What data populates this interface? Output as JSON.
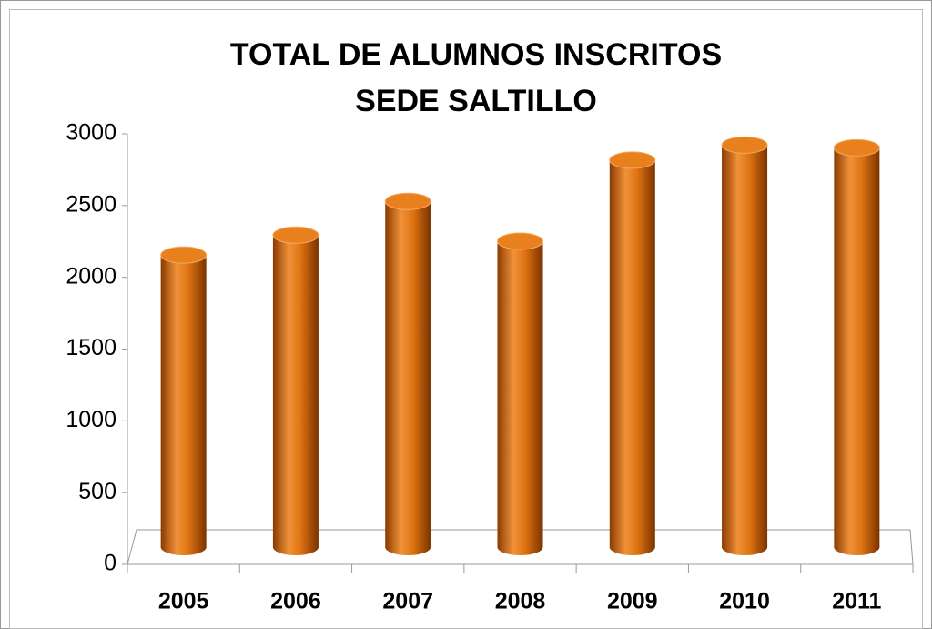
{
  "chart_data": {
    "type": "bar",
    "title": [
      "TOTAL DE ALUMNOS INSCRITOS",
      "SEDE SALTILLO"
    ],
    "categories": [
      "2005",
      "2006",
      "2007",
      "2008",
      "2009",
      "2010",
      "2011"
    ],
    "values": [
      2125,
      2270,
      2515,
      2225,
      2815,
      2925,
      2905
    ],
    "color": "#d96c00",
    "ylim": [
      0,
      3000
    ],
    "yticks": [
      0,
      500,
      1000,
      1500,
      2000,
      2500,
      3000
    ],
    "grid": false
  }
}
